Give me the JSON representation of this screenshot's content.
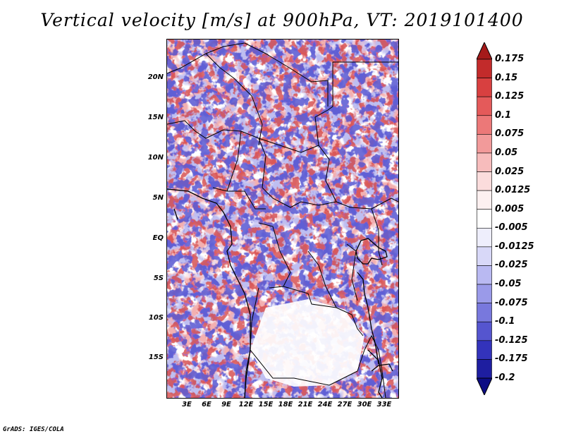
{
  "title": "Vertical velocity [m/s] at 900hPa, VT: 2019101400",
  "credit": "GrADS: IGES/COLA",
  "lat_labels": [
    "20N",
    "15N",
    "10N",
    "5N",
    "EQ",
    "5S",
    "10S",
    "15S"
  ],
  "lon_labels": [
    "3E",
    "6E",
    "9E",
    "12E",
    "15E",
    "18E",
    "21E",
    "24E",
    "27E",
    "30E",
    "33E"
  ],
  "colorbar": {
    "labels": [
      "0.175",
      "0.15",
      "0.125",
      "0.1",
      "0.075",
      "0.05",
      "0.025",
      "0.0125",
      "0.005",
      "-0.005",
      "-0.0125",
      "-0.025",
      "-0.05",
      "-0.075",
      "-0.1",
      "-0.125",
      "-0.175",
      "-0.2"
    ],
    "colors": [
      "#a51a1a",
      "#c22b2b",
      "#d84040",
      "#e45a5a",
      "#ec7878",
      "#f29a9a",
      "#f7bcbc",
      "#fbdcdc",
      "#fdf0f0",
      "#ffffff",
      "#eeeefc",
      "#d8d8f8",
      "#b9b9f2",
      "#9a9ae9",
      "#7878dd",
      "#5555cf",
      "#3333bb",
      "#1e1ea0",
      "#0c0c84"
    ]
  }
}
